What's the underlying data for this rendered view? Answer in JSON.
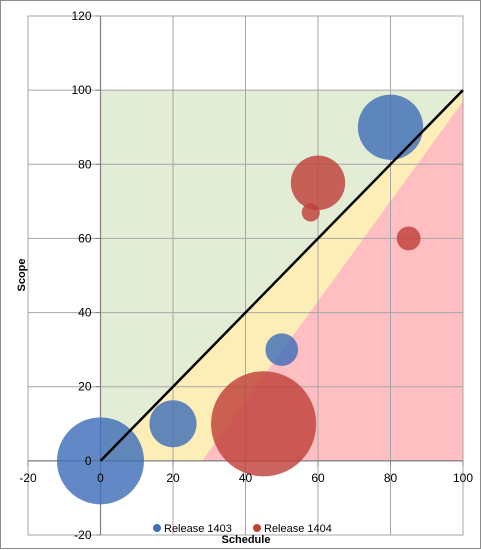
{
  "chart_data": {
    "type": "bubble",
    "title": "",
    "xlabel": "Schedule",
    "ylabel": "Scope",
    "xlim": [
      -20,
      100
    ],
    "ylim": [
      -20,
      120
    ],
    "x_ticks": [
      -20,
      0,
      20,
      40,
      60,
      80,
      100
    ],
    "y_ticks": [
      -20,
      0,
      20,
      40,
      60,
      80,
      100,
      120
    ],
    "grid": true,
    "legend_position": "bottom",
    "zones": [
      {
        "color": "#e3ecd4",
        "polygon": [
          [
            0,
            0
          ],
          [
            0,
            100
          ],
          [
            100,
            100
          ]
        ]
      },
      {
        "color": "#fdeeb8",
        "polygon": [
          [
            0,
            0
          ],
          [
            100,
            100
          ],
          [
            100,
            97
          ],
          [
            28,
            0
          ]
        ]
      },
      {
        "color": "#ffbfc2",
        "polygon": [
          [
            28,
            0
          ],
          [
            100,
            97
          ],
          [
            100,
            0
          ]
        ]
      }
    ],
    "reference_line": {
      "from": [
        0,
        0
      ],
      "to": [
        100,
        100
      ],
      "color": "#000000"
    },
    "series": [
      {
        "name": "Release 1403",
        "color": "#3f6fb8",
        "points": [
          {
            "x": 0,
            "y": 0,
            "r": 12
          },
          {
            "x": 20,
            "y": 10,
            "r": 6.5
          },
          {
            "x": 50,
            "y": 30,
            "r": 4.5
          },
          {
            "x": 80,
            "y": 90,
            "r": 9
          }
        ]
      },
      {
        "name": "Release 1404",
        "color": "#c0413a",
        "points": [
          {
            "x": 45,
            "y": 10,
            "r": 14.5
          },
          {
            "x": 60,
            "y": 75,
            "r": 7.5
          },
          {
            "x": 58,
            "y": 67,
            "r": 2.5
          },
          {
            "x": 85,
            "y": 60,
            "r": 3.3
          }
        ]
      }
    ]
  }
}
